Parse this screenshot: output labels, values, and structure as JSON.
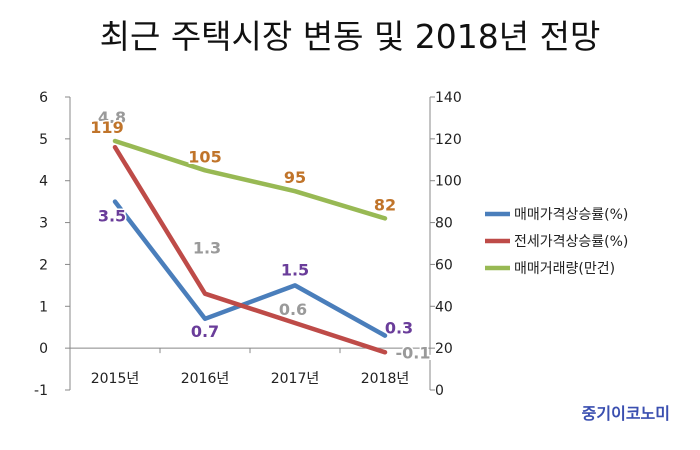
{
  "title": "최근 주택시장 변동 및 2018년 전망",
  "brand": "중기이코노미",
  "chart_data": {
    "type": "line",
    "categories": [
      "2015년",
      "2016년",
      "2017년",
      "2018년"
    ],
    "y_left": {
      "min": -1,
      "max": 6,
      "ticks": [
        -1,
        0,
        1,
        2,
        3,
        4,
        5,
        6
      ]
    },
    "y_right": {
      "min": 0,
      "max": 140,
      "ticks": [
        0,
        20,
        40,
        60,
        80,
        100,
        120,
        140
      ]
    },
    "grid": false,
    "legend_position": "right",
    "series": [
      {
        "name": "매매가격상승률(%)",
        "axis": "left",
        "color": "#4a7ebb",
        "label_color": "#6a3d9a",
        "values": [
          3.5,
          0.7,
          1.5,
          0.3
        ],
        "labels": [
          "3.5",
          "0.7",
          "1.5",
          "0.3"
        ]
      },
      {
        "name": "전세가격상승률(%)",
        "axis": "left",
        "color": "#be4b48",
        "label_color": "#9a9a9a",
        "values": [
          4.8,
          1.3,
          0.6,
          -0.1
        ],
        "labels": [
          "4.8",
          "1.3",
          "0.6",
          "-0.1"
        ]
      },
      {
        "name": "매매거래량(만건)",
        "axis": "right",
        "color": "#98b954",
        "label_color": "#c0742a",
        "values": [
          119,
          105,
          95,
          82
        ],
        "labels": [
          "119",
          "105",
          "95",
          "82"
        ]
      }
    ]
  }
}
